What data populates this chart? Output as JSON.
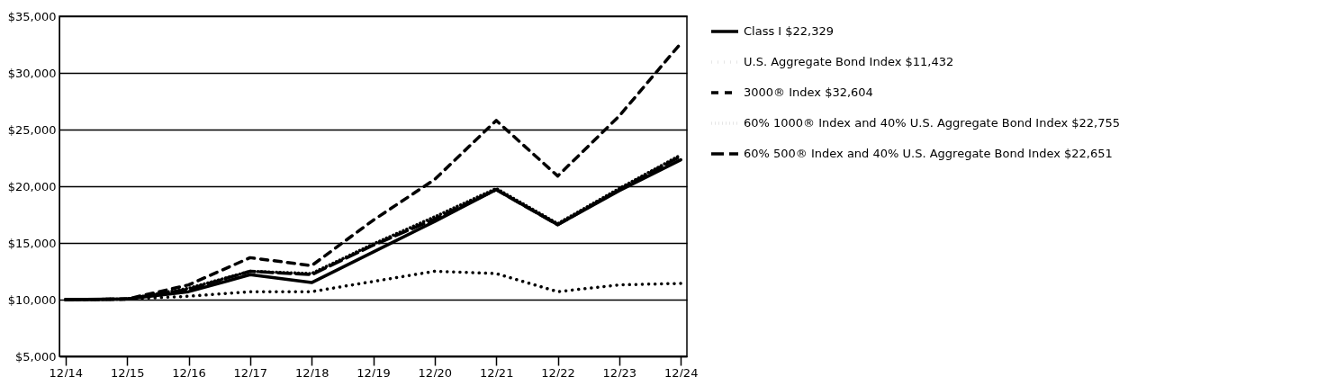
{
  "chart_data": {
    "type": "line",
    "categories": [
      "12/14",
      "12/15",
      "12/16",
      "12/17",
      "12/18",
      "12/19",
      "12/20",
      "12/21",
      "12/22",
      "12/23",
      "12/24"
    ],
    "series": [
      {
        "name": "Class I $22,329",
        "color": "#000000",
        "line_style": "solid",
        "values": [
          10000,
          10050,
          10700,
          12200,
          11500,
          14200,
          16900,
          19700,
          16600,
          19600,
          22329
        ]
      },
      {
        "name": "U.S. Aggregate Bond Index $11,432",
        "color": "#000000",
        "line_style": "dotted",
        "values": [
          10000,
          10050,
          10300,
          10700,
          10700,
          11600,
          12500,
          12300,
          10700,
          11300,
          11432
        ]
      },
      {
        "name": "3000® Index $32,604",
        "color": "#000000",
        "line_style": "dashed",
        "values": [
          10000,
          10050,
          11300,
          13700,
          13000,
          17000,
          20600,
          25800,
          20900,
          26200,
          32604
        ]
      },
      {
        "name": "60% 1000® Index and 40% U.S. Aggregate Bond Index $22,755",
        "color": "#000000",
        "line_style": "dotted",
        "values": [
          10000,
          10050,
          11000,
          12500,
          12300,
          14900,
          17300,
          19800,
          16700,
          19800,
          22755
        ]
      },
      {
        "name": "60% 500® Index and 40% U.S. Aggregate Bond Index $22,651",
        "color": "#000000",
        "line_style": "dashed",
        "values": [
          10000,
          10050,
          10900,
          12500,
          12200,
          14800,
          17100,
          19700,
          16600,
          19700,
          22651
        ]
      }
    ],
    "ylim": [
      5000,
      35000
    ],
    "yticks": [
      {
        "value": 5000,
        "label": "$5,000"
      },
      {
        "value": 10000,
        "label": "$10,000"
      },
      {
        "value": 15000,
        "label": "$15,000"
      },
      {
        "value": 20000,
        "label": "$20,000"
      },
      {
        "value": 25000,
        "label": "$25,000"
      },
      {
        "value": 30000,
        "label": "$30,000"
      },
      {
        "value": 35000,
        "label": "$35,000"
      }
    ],
    "grid": "y",
    "legend": "right",
    "marker": "none"
  }
}
